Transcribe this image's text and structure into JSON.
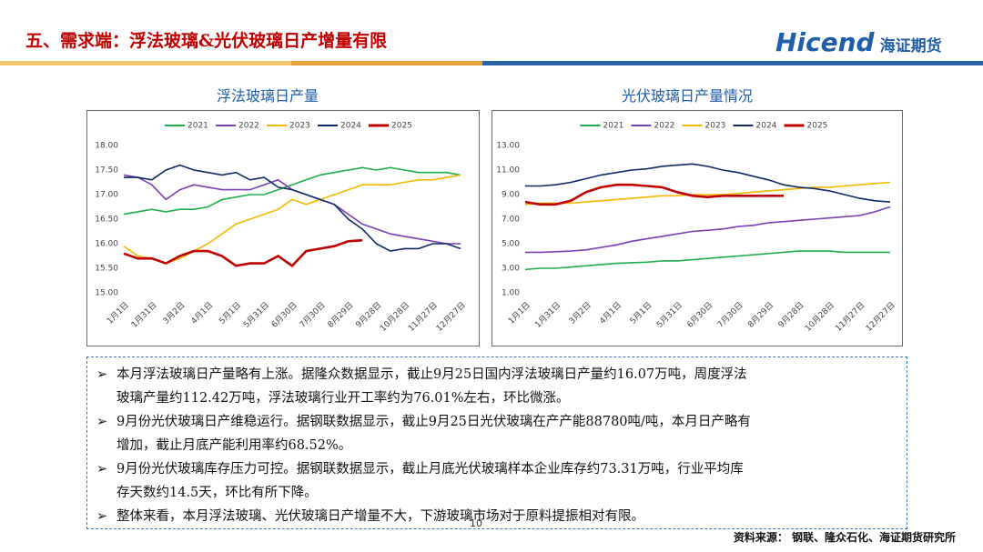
{
  "header": {
    "title": "五、需求端：浮法玻璃&光伏玻璃日产增量有限"
  },
  "logo": {
    "brand": "Hicend",
    "name": "海证期货"
  },
  "chart_data": [
    {
      "type": "line",
      "title": "浮法玻璃日产量",
      "categories": [
        "1月1日",
        null,
        "1月31日",
        null,
        "3月2日",
        null,
        "4月1日",
        null,
        "5月1日",
        null,
        "5月31日",
        null,
        "6月30日",
        null,
        "7月30日",
        null,
        "8月29日",
        null,
        "9月28日",
        null,
        "10月28日",
        null,
        "11月27日",
        null,
        "12月27日"
      ],
      "ylim": [
        15,
        18
      ],
      "yticks": [
        {
          "value": 15,
          "label": "15.00"
        },
        {
          "value": 15.5,
          "label": "15.50"
        },
        {
          "value": 16,
          "label": "16.00"
        },
        {
          "value": 16.5,
          "label": "16.50"
        },
        {
          "value": 17,
          "label": "17.00"
        },
        {
          "value": 17.5,
          "label": "17.50"
        },
        {
          "value": 18,
          "label": "18.00"
        }
      ],
      "grid": false,
      "legend": "top",
      "series": [
        {
          "name": "2021",
          "color": "#1fae4b",
          "values": [
            16.6,
            16.65,
            16.7,
            16.65,
            16.7,
            16.7,
            16.75,
            16.9,
            16.95,
            17.0,
            17.0,
            17.1,
            17.2,
            17.3,
            17.4,
            17.45,
            17.5,
            17.55,
            17.5,
            17.55,
            17.5,
            17.45,
            17.45,
            17.45,
            17.4
          ]
        },
        {
          "name": "2022",
          "color": "#7b3fb5",
          "values": [
            17.4,
            17.35,
            17.2,
            16.9,
            17.1,
            17.2,
            17.15,
            17.1,
            17.1,
            17.1,
            17.2,
            17.3,
            17.1,
            17.0,
            16.9,
            16.8,
            16.6,
            16.4,
            16.3,
            16.2,
            16.15,
            16.1,
            16.05,
            16.0,
            16.0
          ]
        },
        {
          "name": "2023",
          "color": "#f5b800",
          "values": [
            15.95,
            15.75,
            15.7,
            15.6,
            15.7,
            15.85,
            16.0,
            16.2,
            16.4,
            16.5,
            16.6,
            16.7,
            16.9,
            16.8,
            16.9,
            17.0,
            17.1,
            17.2,
            17.2,
            17.2,
            17.25,
            17.3,
            17.3,
            17.35,
            17.4
          ]
        },
        {
          "name": "2024",
          "color": "#0e2a66",
          "values": [
            17.35,
            17.35,
            17.3,
            17.5,
            17.6,
            17.5,
            17.45,
            17.4,
            17.45,
            17.3,
            17.35,
            17.15,
            17.1,
            17.0,
            16.9,
            16.8,
            16.5,
            16.3,
            16.0,
            15.85,
            15.9,
            15.9,
            16.0,
            16.0,
            15.9
          ]
        },
        {
          "name": "2025",
          "color": "#c00000",
          "values": [
            15.8,
            15.7,
            15.7,
            15.6,
            15.75,
            15.85,
            15.85,
            15.75,
            15.55,
            15.6,
            15.6,
            15.75,
            15.55,
            15.85,
            15.9,
            15.95,
            16.05,
            16.07,
            null,
            null,
            null,
            null,
            null,
            null,
            null
          ]
        }
      ]
    },
    {
      "type": "line",
      "title": "光伏玻璃日产量情况",
      "categories": [
        "1月1日",
        null,
        "1月31日",
        null,
        "3月2日",
        null,
        "4月1日",
        null,
        "5月1日",
        null,
        "5月31日",
        null,
        "6月30日",
        null,
        "7月30日",
        null,
        "8月29日",
        null,
        "9月28日",
        null,
        "10月28日",
        null,
        "11月27日",
        null,
        "12月27日"
      ],
      "ylim": [
        1,
        13
      ],
      "yticks": [
        {
          "value": 1,
          "label": "1.00"
        },
        {
          "value": 3,
          "label": "3.00"
        },
        {
          "value": 5,
          "label": "5.00"
        },
        {
          "value": 7,
          "label": "7.00"
        },
        {
          "value": 9,
          "label": "9.00"
        },
        {
          "value": 11,
          "label": "11.00"
        },
        {
          "value": 13,
          "label": "13.00"
        }
      ],
      "grid": false,
      "legend": "top",
      "series": [
        {
          "name": "2021",
          "color": "#1fae4b",
          "values": [
            2.9,
            3.0,
            3.0,
            3.1,
            3.2,
            3.3,
            3.4,
            3.45,
            3.5,
            3.6,
            3.6,
            3.7,
            3.8,
            3.9,
            4.0,
            4.1,
            4.2,
            4.3,
            4.4,
            4.4,
            4.4,
            4.3,
            4.3,
            4.3,
            4.3
          ]
        },
        {
          "name": "2022",
          "color": "#7b3fb5",
          "values": [
            4.3,
            4.3,
            4.35,
            4.4,
            4.5,
            4.7,
            4.9,
            5.2,
            5.4,
            5.6,
            5.8,
            6.0,
            6.1,
            6.2,
            6.4,
            6.5,
            6.7,
            6.8,
            6.9,
            7.0,
            7.1,
            7.2,
            7.3,
            7.6,
            8.0
          ]
        },
        {
          "name": "2023",
          "color": "#f5b800",
          "values": [
            8.2,
            8.3,
            8.3,
            8.3,
            8.4,
            8.5,
            8.6,
            8.7,
            8.8,
            8.9,
            8.9,
            9.0,
            9.0,
            9.0,
            9.1,
            9.2,
            9.3,
            9.4,
            9.5,
            9.6,
            9.6,
            9.7,
            9.8,
            9.9,
            10.0
          ]
        },
        {
          "name": "2024",
          "color": "#0e2a66",
          "values": [
            9.7,
            9.7,
            9.8,
            10.0,
            10.3,
            10.6,
            10.8,
            11.0,
            11.1,
            11.3,
            11.4,
            11.5,
            11.3,
            11.0,
            10.8,
            10.5,
            10.2,
            9.8,
            9.6,
            9.5,
            9.3,
            9.0,
            8.7,
            8.5,
            8.4
          ]
        },
        {
          "name": "2025",
          "color": "#c00000",
          "values": [
            8.4,
            8.2,
            8.2,
            8.5,
            9.2,
            9.6,
            9.8,
            9.8,
            9.7,
            9.6,
            9.2,
            8.9,
            8.8,
            8.9,
            8.9,
            8.9,
            8.9,
            8.9,
            null,
            null,
            null,
            null,
            null,
            null,
            null
          ]
        }
      ]
    }
  ],
  "notes": [
    {
      "line1": "本月浮法玻璃日产量略有上涨。据隆众数据显示，截止9月25日国内浮法玻璃日产量约16.07万吨，周度浮法",
      "line2": "玻璃产量约112.42万吨，浮法玻璃行业开工率约为76.01%左右，环比微涨。"
    },
    {
      "line1": "9月份光伏玻璃日产维稳运行。据钢联数据显示，截止9月25日光伏玻璃在产产能88780吨/吨，本月日产略有",
      "line2": "增加，截止月底产能利用率约68.52%。"
    },
    {
      "line1": "9月份光伏玻璃库存压力可控。据钢联数据显示，截止月底光伏玻璃样本企业库存约73.31万吨，行业平均库",
      "line2": "存天数约14.5天，环比有所下降。"
    },
    {
      "line1": "整体来看，本月浮法玻璃、光伏玻璃日产增量不大，下游玻璃市场对于原料提振相对有限。"
    }
  ],
  "footer": {
    "source": "资料来源： 钢联、隆众石化、海证期货研究所",
    "page": "10"
  }
}
